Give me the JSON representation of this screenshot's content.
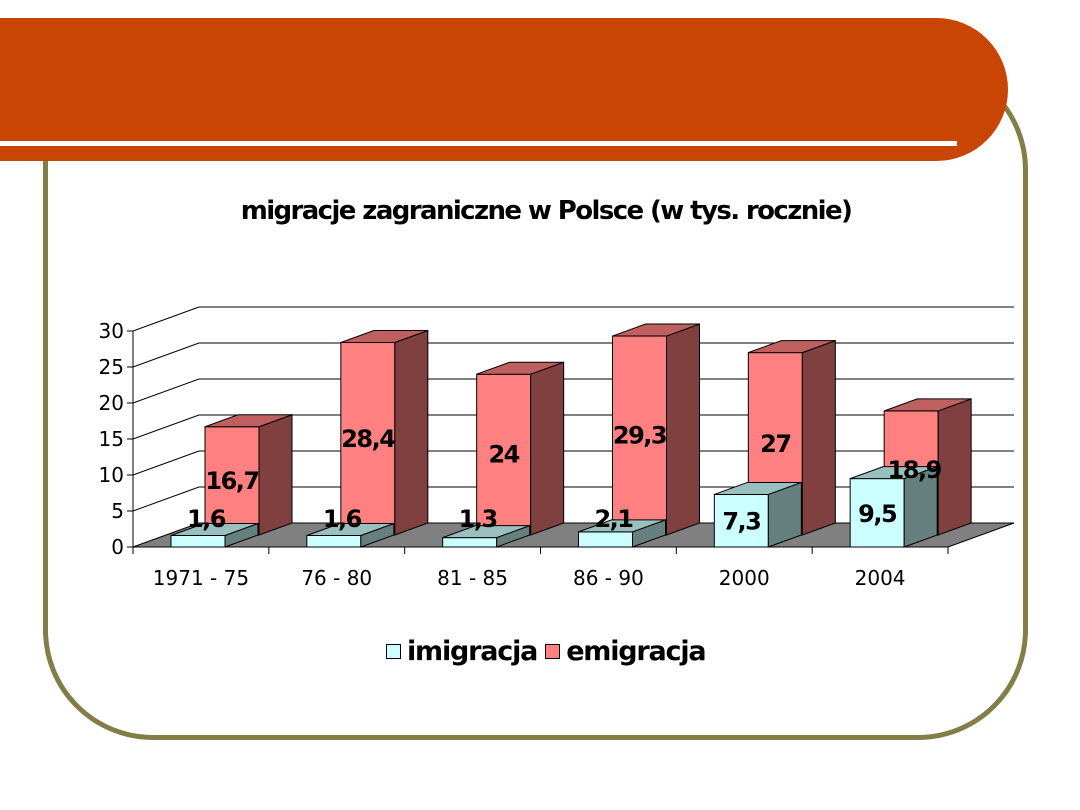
{
  "colors": {
    "banner": "#c94504",
    "frame": "#837e48",
    "imigracja": "#ccffff",
    "emigracja": "#ff8080"
  },
  "chart_data": {
    "type": "bar",
    "title": "migracje zagraniczne w Polsce (w tys. rocznie)",
    "categories": [
      "1971 - 75",
      "76 - 80",
      "81 - 85",
      "86 - 90",
      "2000",
      "2004"
    ],
    "series": [
      {
        "name": "imigracja",
        "values": [
          1.6,
          1.6,
          1.3,
          2.1,
          7.3,
          9.5
        ],
        "labels": [
          "1,6",
          "1,6",
          "1,3",
          "2,1",
          "7,3",
          "9,5"
        ]
      },
      {
        "name": "emigracja",
        "values": [
          16.7,
          28.4,
          24,
          29.3,
          27,
          18.9
        ],
        "labels": [
          "16,7",
          "28,4",
          "24",
          "29,3",
          "27",
          "18,9"
        ]
      }
    ],
    "y_ticks": [
      "0",
      "5",
      "10",
      "15",
      "20",
      "25",
      "30"
    ],
    "ylim": [
      0,
      30
    ],
    "style": "3D clustered column",
    "legend_position": "bottom",
    "grid": true
  }
}
